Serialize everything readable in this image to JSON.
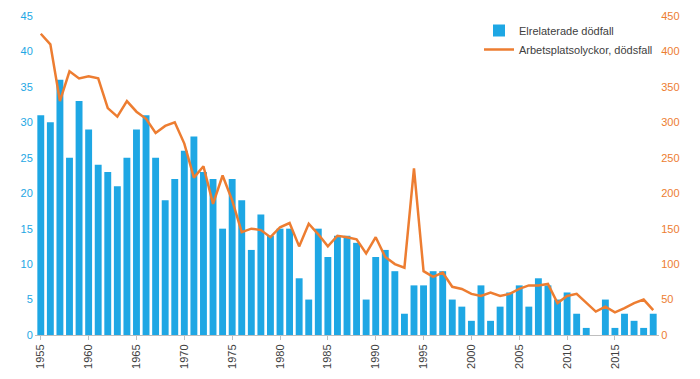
{
  "chart_data": {
    "type": "bar",
    "x": [
      1955,
      1956,
      1957,
      1958,
      1959,
      1960,
      1961,
      1962,
      1963,
      1964,
      1965,
      1966,
      1967,
      1968,
      1969,
      1970,
      1971,
      1972,
      1973,
      1974,
      1975,
      1976,
      1977,
      1978,
      1979,
      1980,
      1981,
      1982,
      1983,
      1984,
      1985,
      1986,
      1987,
      1988,
      1989,
      1990,
      1991,
      1992,
      1993,
      1994,
      1995,
      1996,
      1997,
      1998,
      1999,
      2000,
      2001,
      2002,
      2003,
      2004,
      2005,
      2006,
      2007,
      2008,
      2009,
      2010,
      2011,
      2012,
      2013,
      2014,
      2015,
      2016,
      2017,
      2018,
      2019
    ],
    "series": [
      {
        "name": "Elrelaterade dödfall",
        "type": "bar",
        "color": "#1ea7e4",
        "values": [
          31,
          30,
          36,
          25,
          33,
          29,
          24,
          23,
          21,
          25,
          29,
          31,
          25,
          19,
          22,
          26,
          28,
          23,
          22,
          15,
          22,
          19,
          12,
          17,
          14,
          15,
          15,
          8,
          5,
          15,
          11,
          14,
          14,
          13,
          5,
          11,
          12,
          9,
          3,
          7,
          7,
          9,
          9,
          5,
          4,
          2,
          7,
          2,
          4,
          6,
          7,
          4,
          8,
          7,
          5,
          6,
          3,
          1,
          0,
          5,
          1,
          3,
          2,
          1,
          3
        ]
      },
      {
        "name": "Arbetsplatsolyckor, dödsfall",
        "type": "line",
        "axis": "y2",
        "color": "#ed7d31",
        "values": [
          425,
          410,
          330,
          372,
          362,
          365,
          362,
          320,
          308,
          330,
          315,
          305,
          285,
          295,
          300,
          270,
          222,
          238,
          185,
          225,
          190,
          145,
          150,
          148,
          138,
          152,
          158,
          125,
          157,
          142,
          125,
          140,
          138,
          135,
          115,
          138,
          110,
          100,
          95,
          235,
          90,
          82,
          88,
          68,
          65,
          58,
          55,
          60,
          55,
          58,
          65,
          70,
          70,
          72,
          45,
          55,
          58,
          45,
          33,
          40,
          32,
          38,
          45,
          50,
          35
        ]
      }
    ],
    "xlim": [
      1954.5,
      2019.5
    ],
    "xticks": [
      1955,
      1960,
      1965,
      1970,
      1975,
      1980,
      1985,
      1990,
      1995,
      2000,
      2005,
      2010,
      2015
    ],
    "ylim": [
      0,
      45
    ],
    "yticks": [
      0,
      5,
      10,
      15,
      20,
      25,
      30,
      35,
      40,
      45
    ],
    "y2lim": [
      0,
      450
    ],
    "y2ticks": [
      0,
      50,
      100,
      150,
      200,
      250,
      300,
      350,
      400,
      450
    ],
    "grid": false,
    "legend": "top right"
  }
}
